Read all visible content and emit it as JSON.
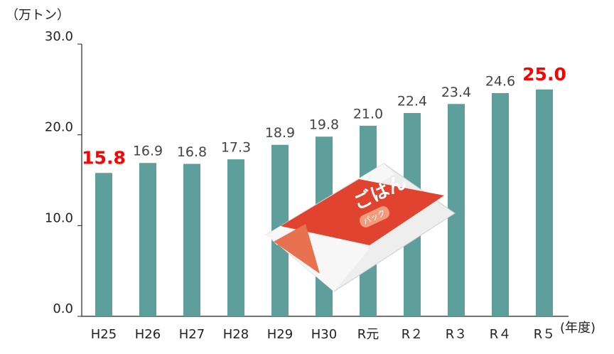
{
  "chart_data": {
    "type": "bar",
    "y_unit_label": "（万トン）",
    "x_unit_label": "(年度)",
    "categories": [
      "H25",
      "H26",
      "H27",
      "H28",
      "H29",
      "H30",
      "R元",
      "R２",
      "R３",
      "R４",
      "R５"
    ],
    "values": [
      15.8,
      16.9,
      16.8,
      17.3,
      18.9,
      19.8,
      21.0,
      22.4,
      23.4,
      24.6,
      25.0
    ],
    "value_labels": [
      "15.8",
      "16.9",
      "16.8",
      "17.3",
      "18.9",
      "19.8",
      "21.0",
      "22.4",
      "23.4",
      "24.6",
      "25.0"
    ],
    "value_label_colors": [
      "#ff0000",
      "#444444",
      "#444444",
      "#444444",
      "#444444",
      "#444444",
      "#444444",
      "#444444",
      "#444444",
      "#444444",
      "#ff0000"
    ],
    "color": "#5f9f9b",
    "ylim": [
      0,
      30
    ],
    "yticks": [
      {
        "value": 0,
        "label": "0.0"
      },
      {
        "value": 10,
        "label": "10.0"
      },
      {
        "value": 20,
        "label": "20.0"
      },
      {
        "value": 30,
        "label": "30.0"
      }
    ],
    "annotations": [
      "ごはん",
      "パック"
    ]
  }
}
